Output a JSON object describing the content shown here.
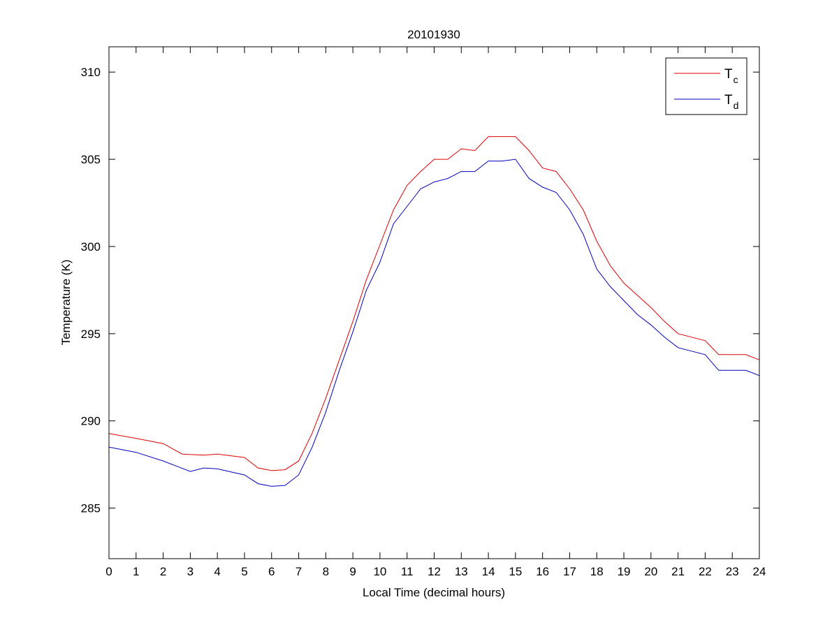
{
  "chart_data": {
    "type": "line",
    "title": "20101930",
    "xlabel": "Local Time (decimal hours)",
    "ylabel": "Temperature (K)",
    "xlim": [
      0,
      24
    ],
    "ylim": [
      282.1,
      311.45
    ],
    "xticks": [
      0,
      1,
      2,
      3,
      4,
      5,
      6,
      7,
      8,
      9,
      10,
      11,
      12,
      13,
      14,
      15,
      16,
      17,
      18,
      19,
      20,
      21,
      22,
      23,
      24
    ],
    "yticks": [
      285,
      290,
      295,
      300,
      305,
      310
    ],
    "grid": false,
    "legend_position": "top-right",
    "series": [
      {
        "name": "T",
        "subscript": "c",
        "color": "#e00000",
        "x": [
          0,
          1,
          2,
          2.7,
          3.5,
          4,
          5,
          5.5,
          6,
          6.5,
          7,
          7.5,
          8,
          8.5,
          9,
          9.5,
          10,
          10.5,
          11,
          11.5,
          12,
          12.5,
          13,
          13.5,
          14,
          14.5,
          15,
          15.5,
          16,
          16.5,
          17,
          17.5,
          18,
          18.5,
          19,
          19.5,
          20,
          20.5,
          21,
          21.5,
          22,
          22.5,
          23,
          23.5,
          24
        ],
        "y": [
          289.28,
          289.0,
          288.7,
          288.1,
          288.04,
          288.1,
          287.9,
          287.3,
          287.15,
          287.2,
          287.7,
          289.3,
          291.3,
          293.5,
          295.7,
          298.1,
          300.1,
          302.1,
          303.5,
          304.3,
          305.0,
          305.0,
          305.6,
          305.5,
          306.3,
          306.3,
          306.3,
          305.5,
          304.5,
          304.3,
          303.3,
          302.1,
          300.3,
          298.9,
          297.9,
          297.2,
          296.5,
          295.7,
          295.0,
          294.8,
          294.6,
          293.8,
          293.8,
          293.8,
          293.5
        ]
      },
      {
        "name": "T",
        "subscript": "d",
        "color": "#0000c0",
        "x": [
          0,
          1,
          2,
          3,
          3.5,
          4,
          5,
          5.5,
          6,
          6.5,
          7,
          7.5,
          8,
          8.5,
          9,
          9.5,
          10,
          10.5,
          11,
          11.5,
          12,
          12.5,
          13,
          13.5,
          14,
          14.5,
          15,
          15.5,
          16,
          16.5,
          17,
          17.5,
          18,
          18.5,
          19,
          19.5,
          20,
          20.5,
          21,
          21.5,
          22,
          22.5,
          23,
          23.5,
          24
        ],
        "y": [
          288.5,
          288.2,
          287.7,
          287.1,
          287.3,
          287.25,
          286.9,
          286.4,
          286.25,
          286.3,
          286.9,
          288.5,
          290.5,
          292.9,
          295.1,
          297.5,
          299.1,
          301.3,
          302.3,
          303.3,
          303.7,
          303.9,
          304.3,
          304.3,
          304.9,
          304.9,
          305.0,
          303.9,
          303.4,
          303.1,
          302.1,
          300.7,
          298.7,
          297.7,
          296.9,
          296.1,
          295.5,
          294.8,
          294.2,
          294.0,
          293.8,
          292.9,
          292.9,
          292.9,
          292.6
        ]
      }
    ]
  }
}
